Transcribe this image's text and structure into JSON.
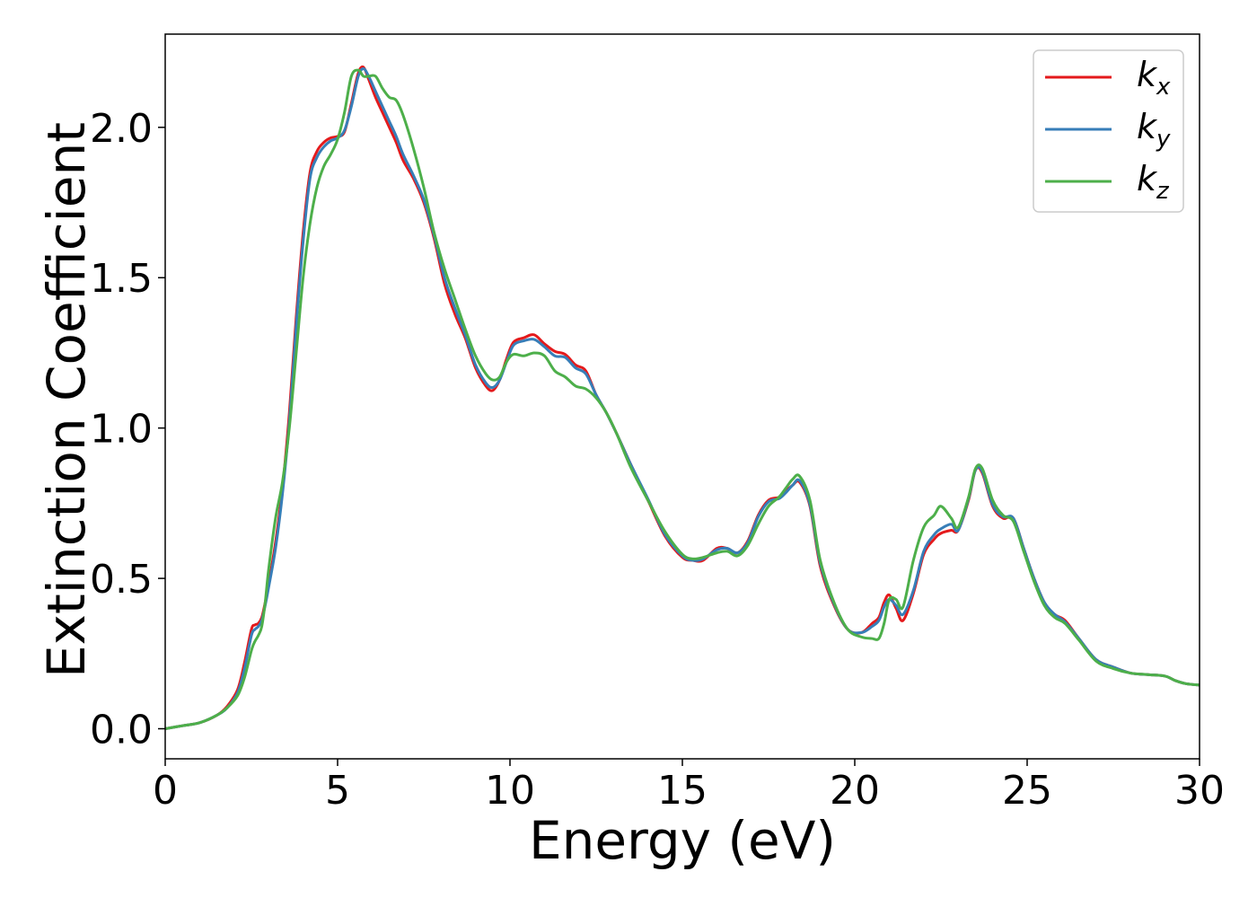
{
  "chart_data": {
    "type": "line",
    "title": "",
    "xlabel": "Energy (eV)",
    "ylabel": "Extinction Coefficient",
    "xlim": [
      0,
      30
    ],
    "ylim": [
      -0.1,
      2.31
    ],
    "xticks": [
      0,
      5,
      10,
      15,
      20,
      25,
      30
    ],
    "yticks": [
      0.0,
      0.5,
      1.0,
      1.5,
      2.0
    ],
    "xtick_labels": [
      "0",
      "5",
      "10",
      "15",
      "20",
      "25",
      "30"
    ],
    "ytick_labels": [
      "0.0",
      "0.5",
      "1.0",
      "1.5",
      "2.0"
    ],
    "grid": false,
    "legend_position": "top-right",
    "x": [
      0,
      0.5,
      1.0,
      1.5,
      1.8,
      2.1,
      2.3,
      2.5,
      2.6,
      2.7,
      2.8,
      2.9,
      3.0,
      3.2,
      3.4,
      3.6,
      3.8,
      4.0,
      4.2,
      4.4,
      4.6,
      4.8,
      5.0,
      5.2,
      5.4,
      5.6,
      5.75,
      5.9,
      6.1,
      6.3,
      6.5,
      6.7,
      6.9,
      7.2,
      7.5,
      7.8,
      8.1,
      8.4,
      8.7,
      9.0,
      9.3,
      9.5,
      9.7,
      9.9,
      10.1,
      10.4,
      10.7,
      11.0,
      11.3,
      11.6,
      11.9,
      12.2,
      12.5,
      12.8,
      13.1,
      13.5,
      14.0,
      14.5,
      15.0,
      15.3,
      15.6,
      16.0,
      16.3,
      16.6,
      16.9,
      17.2,
      17.5,
      17.8,
      18.0,
      18.2,
      18.4,
      18.7,
      19.0,
      19.4,
      19.8,
      20.2,
      20.5,
      20.7,
      20.85,
      21.0,
      21.2,
      21.4,
      21.7,
      22.0,
      22.3,
      22.5,
      22.8,
      23.0,
      23.3,
      23.5,
      23.7,
      24.0,
      24.3,
      24.6,
      24.9,
      25.2,
      25.5,
      25.8,
      26.1,
      26.5,
      27.0,
      27.5,
      28.0,
      28.5,
      29.0,
      29.3,
      29.6,
      30.0
    ],
    "series": [
      {
        "name": "k_x",
        "color": "#e41a1c",
        "values": [
          0.0,
          0.01,
          0.02,
          0.045,
          0.075,
          0.13,
          0.22,
          0.33,
          0.345,
          0.35,
          0.37,
          0.42,
          0.48,
          0.62,
          0.8,
          1.05,
          1.37,
          1.65,
          1.85,
          1.92,
          1.95,
          1.965,
          1.97,
          1.985,
          2.08,
          2.18,
          2.2,
          2.16,
          2.1,
          2.05,
          2.0,
          1.95,
          1.89,
          1.83,
          1.75,
          1.63,
          1.48,
          1.38,
          1.3,
          1.2,
          1.14,
          1.125,
          1.16,
          1.23,
          1.285,
          1.3,
          1.31,
          1.28,
          1.255,
          1.245,
          1.21,
          1.19,
          1.11,
          1.05,
          0.98,
          0.88,
          0.76,
          0.64,
          0.57,
          0.56,
          0.56,
          0.6,
          0.6,
          0.585,
          0.625,
          0.71,
          0.76,
          0.77,
          0.79,
          0.81,
          0.82,
          0.74,
          0.54,
          0.41,
          0.33,
          0.32,
          0.35,
          0.37,
          0.42,
          0.445,
          0.4,
          0.36,
          0.45,
          0.58,
          0.63,
          0.65,
          0.66,
          0.66,
          0.76,
          0.86,
          0.85,
          0.74,
          0.7,
          0.7,
          0.6,
          0.5,
          0.42,
          0.38,
          0.36,
          0.3,
          0.23,
          0.205,
          0.185,
          0.18,
          0.175,
          0.16,
          0.15,
          0.145
        ]
      },
      {
        "name": "k_y",
        "color": "#377eb8",
        "values": [
          0.0,
          0.01,
          0.02,
          0.045,
          0.07,
          0.12,
          0.2,
          0.31,
          0.33,
          0.34,
          0.36,
          0.41,
          0.47,
          0.6,
          0.78,
          1.02,
          1.34,
          1.62,
          1.83,
          1.9,
          1.935,
          1.955,
          1.965,
          1.99,
          2.07,
          2.17,
          2.195,
          2.17,
          2.12,
          2.07,
          2.02,
          1.97,
          1.91,
          1.84,
          1.76,
          1.64,
          1.5,
          1.4,
          1.31,
          1.21,
          1.15,
          1.135,
          1.16,
          1.22,
          1.275,
          1.29,
          1.295,
          1.27,
          1.24,
          1.235,
          1.2,
          1.18,
          1.11,
          1.05,
          0.98,
          0.88,
          0.765,
          0.645,
          0.575,
          0.56,
          0.565,
          0.595,
          0.6,
          0.585,
          0.62,
          0.705,
          0.755,
          0.765,
          0.785,
          0.81,
          0.825,
          0.745,
          0.55,
          0.415,
          0.33,
          0.32,
          0.34,
          0.36,
          0.405,
          0.43,
          0.41,
          0.38,
          0.46,
          0.59,
          0.645,
          0.665,
          0.68,
          0.66,
          0.765,
          0.86,
          0.855,
          0.745,
          0.705,
          0.7,
          0.6,
          0.5,
          0.42,
          0.38,
          0.355,
          0.3,
          0.23,
          0.205,
          0.185,
          0.18,
          0.175,
          0.16,
          0.15,
          0.145
        ]
      },
      {
        "name": "k_z",
        "color": "#4daf4a",
        "values": [
          0.0,
          0.01,
          0.02,
          0.045,
          0.07,
          0.11,
          0.17,
          0.26,
          0.29,
          0.31,
          0.34,
          0.42,
          0.53,
          0.7,
          0.82,
          1.0,
          1.25,
          1.5,
          1.68,
          1.8,
          1.87,
          1.91,
          1.96,
          2.05,
          2.17,
          2.19,
          2.17,
          2.17,
          2.17,
          2.13,
          2.1,
          2.09,
          2.04,
          1.93,
          1.8,
          1.65,
          1.53,
          1.43,
          1.33,
          1.24,
          1.18,
          1.16,
          1.17,
          1.22,
          1.245,
          1.24,
          1.25,
          1.24,
          1.19,
          1.17,
          1.14,
          1.13,
          1.1,
          1.05,
          0.98,
          0.87,
          0.76,
          0.655,
          0.58,
          0.565,
          0.57,
          0.585,
          0.59,
          0.575,
          0.61,
          0.68,
          0.74,
          0.77,
          0.8,
          0.83,
          0.84,
          0.76,
          0.56,
          0.42,
          0.33,
          0.305,
          0.3,
          0.3,
          0.35,
          0.43,
          0.43,
          0.405,
          0.56,
          0.67,
          0.71,
          0.74,
          0.7,
          0.67,
          0.77,
          0.865,
          0.865,
          0.76,
          0.71,
          0.69,
          0.59,
          0.49,
          0.41,
          0.37,
          0.35,
          0.295,
          0.225,
          0.2,
          0.185,
          0.18,
          0.175,
          0.16,
          0.15,
          0.145
        ]
      }
    ],
    "legend": [
      {
        "base": "k",
        "sub": "x",
        "color": "#e41a1c"
      },
      {
        "base": "k",
        "sub": "y",
        "color": "#377eb8"
      },
      {
        "base": "k",
        "sub": "z",
        "color": "#4daf4a"
      }
    ]
  }
}
